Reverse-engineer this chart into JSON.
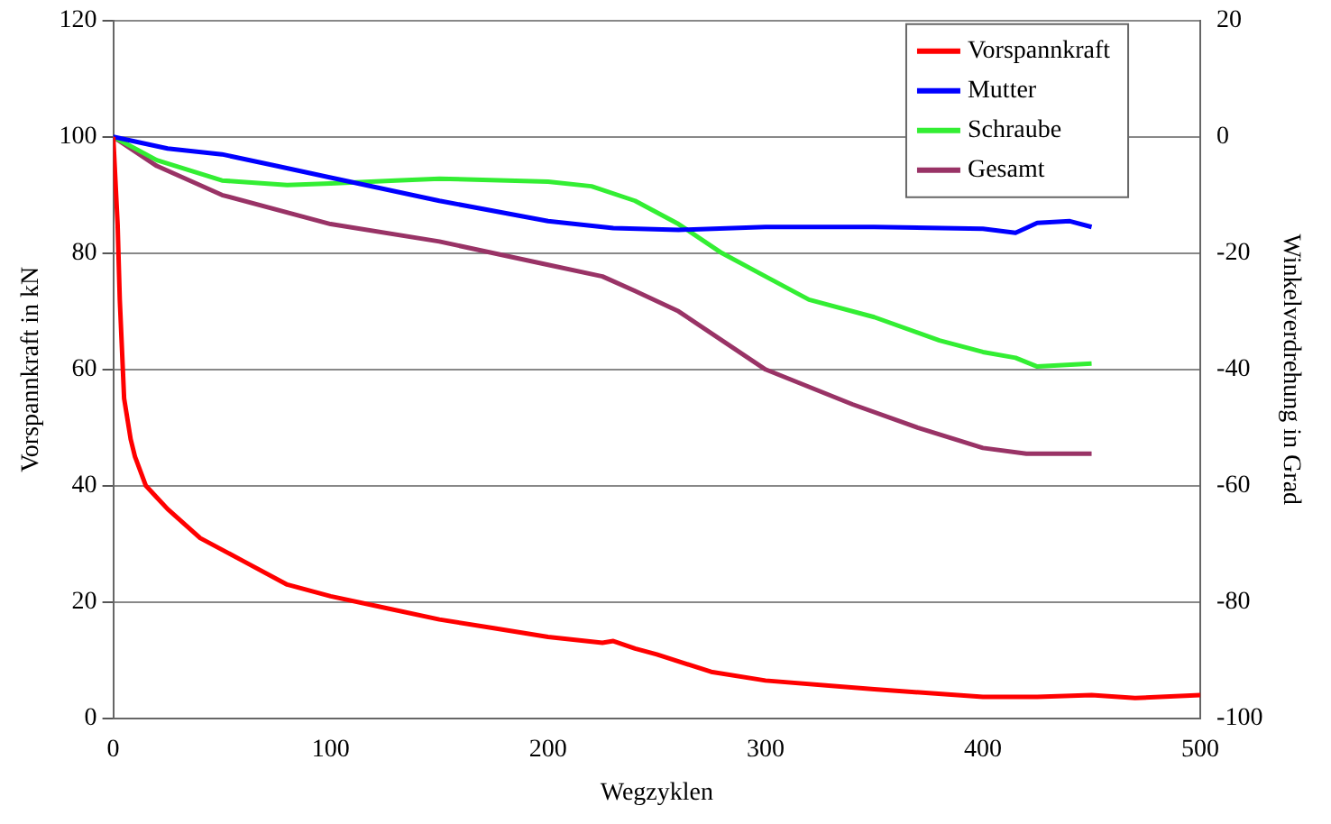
{
  "chart_data": {
    "type": "line",
    "xlabel": "Wegzyklen",
    "ylabel": "Vorspannkraft in kN",
    "y2label": "Winkelverdrehung in Grad",
    "xlim": [
      0,
      500
    ],
    "xticks": [
      0,
      100,
      200,
      300,
      400,
      500
    ],
    "ylim": [
      0,
      120
    ],
    "yticks": [
      0,
      20,
      40,
      60,
      80,
      100,
      120
    ],
    "y2lim": [
      -100,
      20
    ],
    "y2ticks": [
      -100,
      -80,
      -60,
      -40,
      -20,
      0,
      20
    ],
    "grid": "y",
    "legend": "top right",
    "marker": "none",
    "line_style": "solid",
    "series": [
      {
        "name": "Vorspannkraft",
        "color": "#ff0000",
        "x": [
          0,
          2,
          3,
          5,
          8,
          10,
          15,
          20,
          25,
          40,
          60,
          80,
          100,
          125,
          150,
          175,
          200,
          225,
          230,
          240,
          250,
          275,
          300,
          350,
          400,
          425,
          450,
          470,
          500
        ],
        "values": [
          100,
          85,
          72,
          55,
          48,
          45,
          40,
          38,
          36,
          31,
          27,
          23,
          21,
          19,
          17,
          15.5,
          14,
          13,
          13.3,
          12,
          11,
          8,
          6.5,
          5,
          3.7,
          3.7,
          4,
          3.5,
          4
        ]
      },
      {
        "name": "Mutter",
        "color": "#0000ff",
        "axis": "y2",
        "x": [
          0,
          25,
          50,
          75,
          100,
          150,
          200,
          230,
          260,
          300,
          350,
          400,
          415,
          425,
          440,
          450
        ],
        "values": [
          0,
          -2,
          -3,
          -5,
          -7,
          -11,
          -14.5,
          -15.7,
          -16,
          -15.5,
          -15.5,
          -15.8,
          -16.5,
          -14.8,
          -14.5,
          -15.5
        ]
      },
      {
        "name": "Schraube",
        "color": "#33ee33",
        "axis": "y2",
        "x": [
          0,
          20,
          50,
          80,
          100,
          130,
          150,
          200,
          220,
          240,
          260,
          280,
          300,
          320,
          350,
          380,
          400,
          415,
          425,
          450
        ],
        "values": [
          0,
          -4,
          -7.5,
          -8.3,
          -8,
          -7.5,
          -7.2,
          -7.7,
          -8.5,
          -11,
          -15,
          -20,
          -24,
          -28,
          -31,
          -35,
          -37,
          -38,
          -39.5,
          -39
        ]
      },
      {
        "name": "Gesamt",
        "color": "#993366",
        "axis": "y2",
        "x": [
          0,
          20,
          50,
          100,
          150,
          200,
          225,
          240,
          260,
          300,
          340,
          370,
          400,
          420,
          450
        ],
        "values": [
          0,
          -5,
          -10,
          -15,
          -18,
          -22,
          -24,
          -26.5,
          -30,
          -40,
          -46,
          -50,
          -53.5,
          -54.5,
          -54.5
        ]
      }
    ]
  }
}
